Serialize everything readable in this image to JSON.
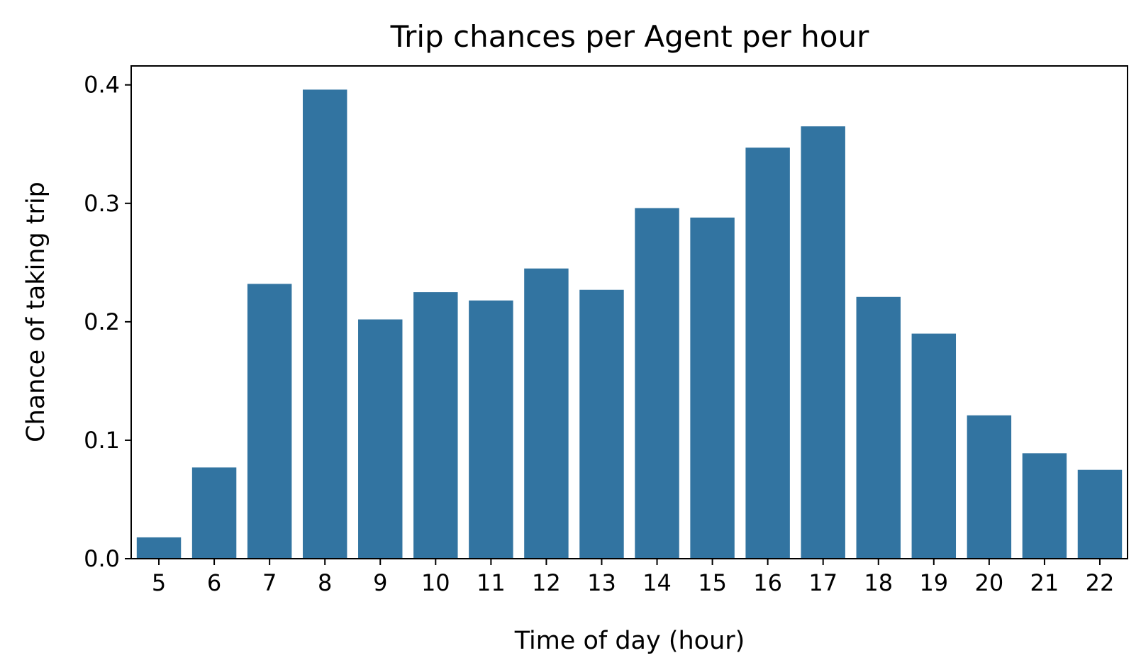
{
  "chart_data": {
    "type": "bar",
    "title": "Trip chances per Agent per hour",
    "xlabel": "Time of day (hour)",
    "ylabel": "Chance of taking trip",
    "categories": [
      "5",
      "6",
      "7",
      "8",
      "9",
      "10",
      "11",
      "12",
      "13",
      "14",
      "15",
      "16",
      "17",
      "18",
      "19",
      "20",
      "21",
      "22"
    ],
    "values": [
      0.018,
      0.077,
      0.232,
      0.396,
      0.202,
      0.225,
      0.218,
      0.245,
      0.227,
      0.296,
      0.288,
      0.347,
      0.365,
      0.221,
      0.19,
      0.121,
      0.089,
      0.075
    ],
    "ylim": [
      0,
      0.416
    ],
    "yticks": [
      0.0,
      0.1,
      0.2,
      0.3,
      0.4
    ],
    "ytick_labels": [
      "0.0",
      "0.1",
      "0.2",
      "0.3",
      "0.4"
    ],
    "bar_color": "#3274a1",
    "grid": false,
    "legend": false
  }
}
